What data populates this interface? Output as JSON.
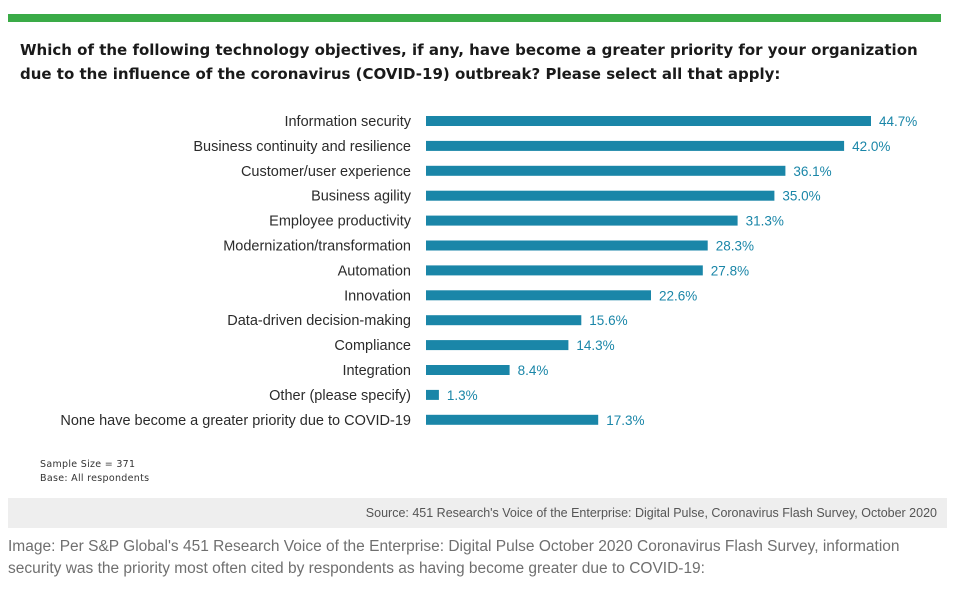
{
  "question": "Which of the following technology objectives, if any, have become a greater priority for your organization due to the influence of the coronavirus (COVID-19) outbreak? Please select all that apply:",
  "notes": {
    "sample_size": "Sample Size = 371",
    "base": "Base: All respondents"
  },
  "source": "Source: 451 Research's Voice of the Enterprise: Digital Pulse, Coronavirus Flash Survey, October 2020",
  "caption": "Image: Per S&P Global's 451 Research Voice of the Enterprise: Digital Pulse October 2020 Coronavirus Flash Survey, information security was the priority most often cited by respondents as having become greater due to COVID-19:",
  "colors": {
    "bar": "#1a86a8",
    "value_label": "#1a86a8",
    "header_rule": "#3aab47",
    "source_band": "#eeeeee"
  },
  "chart_data": {
    "type": "bar",
    "orientation": "horizontal",
    "categories": [
      "Information security",
      "Business continuity and resilience",
      "Customer/user experience",
      "Business agility",
      "Employee productivity",
      "Modernization/transformation",
      "Automation",
      "Innovation",
      "Data-driven decision-making",
      "Compliance",
      "Integration",
      "Other (please specify)",
      "None have become a greater priority due to COVID-19"
    ],
    "values": [
      44.7,
      42.0,
      36.1,
      35.0,
      31.3,
      28.3,
      27.8,
      22.6,
      15.6,
      14.3,
      8.4,
      1.3,
      17.3
    ],
    "value_labels": [
      "44.7%",
      "42.0%",
      "36.1%",
      "35.0%",
      "31.3%",
      "28.3%",
      "27.8%",
      "22.6%",
      "15.6%",
      "14.3%",
      "8.4%",
      "1.3%",
      "17.3%"
    ],
    "unit": "%",
    "xlim": [
      0,
      44.7
    ],
    "grid": false,
    "legend": "none"
  }
}
